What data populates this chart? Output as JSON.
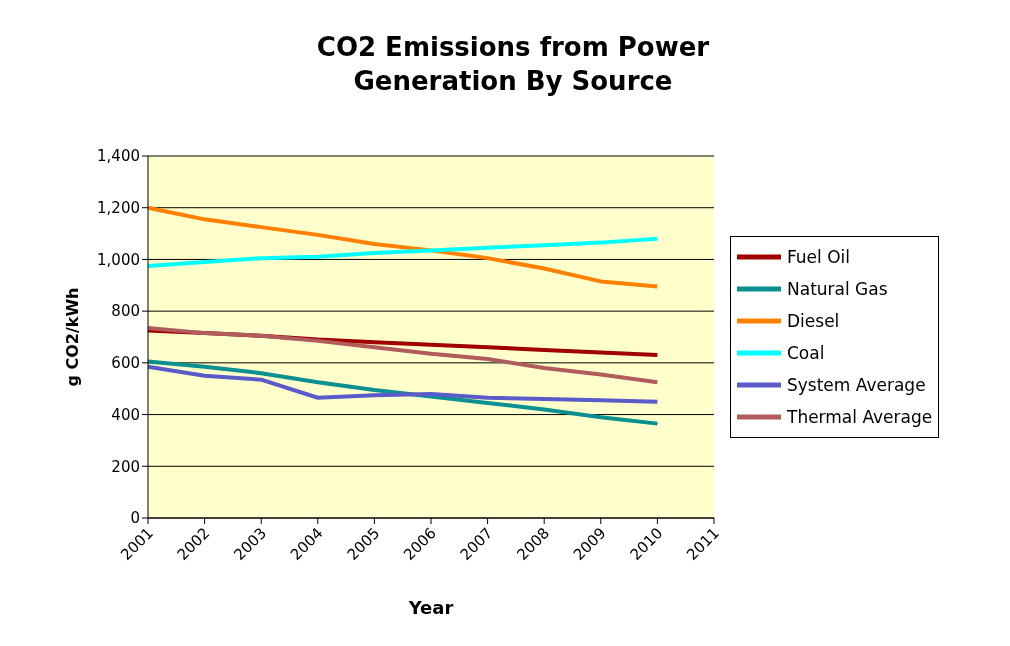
{
  "chart_data": {
    "type": "line",
    "title": "CO2 Emissions from Power Generation By Source",
    "xlabel": "Year",
    "ylabel": "g CO2/kWh",
    "categories": [
      "2001",
      "2002",
      "2003",
      "2004",
      "2005",
      "2006",
      "2007",
      "2008",
      "2009",
      "2010",
      "2011"
    ],
    "series": [
      {
        "name": "Fuel Oil",
        "color": "#a00000",
        "values": [
          725,
          715,
          705,
          690,
          680,
          670,
          660,
          650,
          640,
          630,
          null
        ]
      },
      {
        "name": "Natural Gas",
        "color": "#0a9090",
        "values": [
          605,
          585,
          560,
          525,
          495,
          470,
          445,
          420,
          390,
          365,
          null
        ]
      },
      {
        "name": "Diesel",
        "color": "#ff8000",
        "values": [
          1200,
          1155,
          1125,
          1095,
          1060,
          1035,
          1005,
          965,
          915,
          895,
          null
        ]
      },
      {
        "name": "Coal",
        "color": "#00ffff",
        "values": [
          975,
          990,
          1005,
          1010,
          1025,
          1035,
          1045,
          1055,
          1065,
          1080,
          null
        ]
      },
      {
        "name": "System Average",
        "color": "#5a5ac8",
        "values": [
          585,
          550,
          535,
          465,
          475,
          480,
          465,
          460,
          455,
          450,
          null
        ]
      },
      {
        "name": "Thermal Average",
        "color": "#b05c5c",
        "values": [
          735,
          715,
          705,
          685,
          660,
          635,
          615,
          580,
          555,
          525,
          null
        ]
      }
    ],
    "ylim": [
      0,
      1400
    ],
    "yticks": [
      0,
      200,
      400,
      600,
      800,
      {
        "value": 1000,
        "label": "1,000"
      },
      {
        "value": 1200,
        "label": "1,200"
      },
      {
        "value": 1400,
        "label": "1,400"
      }
    ],
    "grid": "y",
    "legend": "right",
    "marker": "none",
    "line_style": "solid"
  }
}
